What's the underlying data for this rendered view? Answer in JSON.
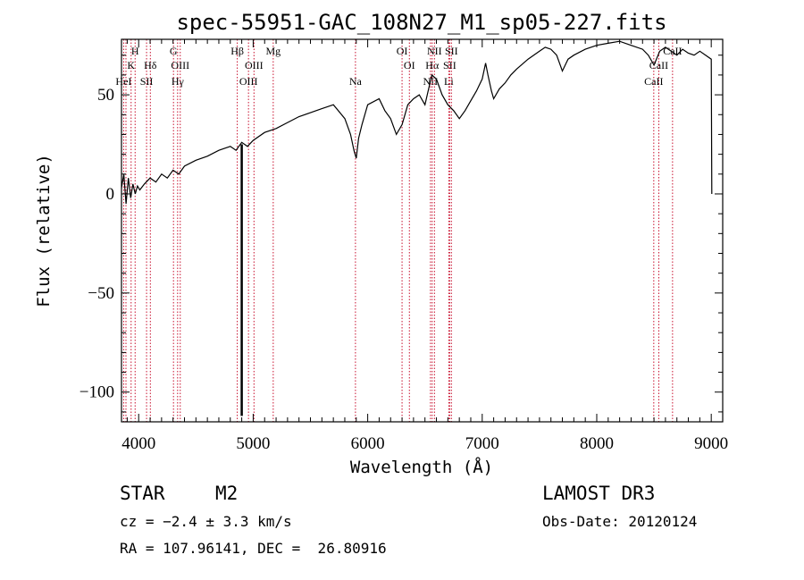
{
  "chart_data": {
    "type": "line",
    "title": "spec-55951-GAC_108N27_M1_sp05-227.fits",
    "xlabel": "Wavelength (Å)",
    "ylabel": "Flux (relative)",
    "xlim": [
      3850,
      9100
    ],
    "ylim": [
      -115,
      78
    ],
    "xticks": [
      4000,
      5000,
      6000,
      7000,
      8000,
      9000
    ],
    "yticks": [
      -100,
      -50,
      0,
      50
    ],
    "spectrum": {
      "x": [
        3850,
        3870,
        3890,
        3910,
        3930,
        3950,
        3970,
        3990,
        4010,
        4050,
        4100,
        4150,
        4200,
        4250,
        4300,
        4350,
        4400,
        4500,
        4600,
        4700,
        4800,
        4850,
        4900,
        4950,
        5000,
        5100,
        5200,
        5300,
        5400,
        5500,
        5600,
        5700,
        5800,
        5850,
        5880,
        5900,
        5920,
        5950,
        6000,
        6100,
        6150,
        6200,
        6250,
        6300,
        6350,
        6400,
        6450,
        6500,
        6560,
        6600,
        6650,
        6700,
        6750,
        6800,
        6850,
        6900,
        6950,
        7000,
        7030,
        7050,
        7080,
        7100,
        7150,
        7200,
        7250,
        7300,
        7400,
        7500,
        7550,
        7600,
        7650,
        7700,
        7750,
        7800,
        7900,
        8000,
        8100,
        8200,
        8300,
        8400,
        8450,
        8500,
        8550,
        8600,
        8650,
        8700,
        8750,
        8800,
        8850,
        8900,
        8950,
        9000,
        9005
      ],
      "y": [
        3,
        10,
        -5,
        8,
        -2,
        5,
        0,
        4,
        2,
        5,
        8,
        6,
        10,
        8,
        12,
        10,
        14,
        17,
        19,
        22,
        24,
        22,
        26,
        24,
        27,
        31,
        33,
        36,
        39,
        41,
        43,
        45,
        38,
        30,
        22,
        18,
        28,
        35,
        45,
        48,
        42,
        38,
        30,
        35,
        45,
        48,
        50,
        45,
        60,
        58,
        50,
        45,
        42,
        38,
        42,
        47,
        52,
        58,
        66,
        60,
        52,
        48,
        53,
        56,
        60,
        63,
        68,
        72,
        74,
        73,
        70,
        62,
        68,
        70,
        73,
        75,
        76,
        77,
        75,
        73,
        70,
        65,
        72,
        74,
        72,
        70,
        73,
        71,
        70,
        72,
        70,
        68,
        0
      ]
    },
    "absorption_line": {
      "x": 4900,
      "y_from": 25,
      "y_to": -112
    },
    "line_markers": [
      {
        "wavelength": 3869,
        "label": "HeI",
        "row": 3
      },
      {
        "wavelength": 3889,
        "label": "",
        "row": 0
      },
      {
        "wavelength": 3934,
        "label": "K",
        "row": 2
      },
      {
        "wavelength": 3969,
        "label": "H",
        "row": 1
      },
      {
        "wavelength": 4069,
        "label": "SII",
        "row": 3
      },
      {
        "wavelength": 4102,
        "label": "Hδ",
        "row": 2
      },
      {
        "wavelength": 4304,
        "label": "G",
        "row": 1
      },
      {
        "wavelength": 4340,
        "label": "Hγ",
        "row": 3
      },
      {
        "wavelength": 4363,
        "label": "OIII",
        "row": 2
      },
      {
        "wavelength": 4861,
        "label": "Hβ",
        "row": 1
      },
      {
        "wavelength": 4959,
        "label": "OIII",
        "row": 3
      },
      {
        "wavelength": 5007,
        "label": "OIII",
        "row": 2
      },
      {
        "wavelength": 5175,
        "label": "Mg",
        "row": 1
      },
      {
        "wavelength": 5893,
        "label": "Na",
        "row": 3
      },
      {
        "wavelength": 6300,
        "label": "OI",
        "row": 1
      },
      {
        "wavelength": 6364,
        "label": "OI",
        "row": 2
      },
      {
        "wavelength": 6548,
        "label": "NII",
        "row": 3
      },
      {
        "wavelength": 6563,
        "label": "Hα",
        "row": 2
      },
      {
        "wavelength": 6583,
        "label": "NII",
        "row": 1
      },
      {
        "wavelength": 6708,
        "label": "Li",
        "row": 3
      },
      {
        "wavelength": 6716,
        "label": "SII",
        "row": 2
      },
      {
        "wavelength": 6731,
        "label": "SII",
        "row": 1
      },
      {
        "wavelength": 8498,
        "label": "CaII",
        "row": 3
      },
      {
        "wavelength": 8542,
        "label": "CaII",
        "row": 2
      },
      {
        "wavelength": 8662,
        "label": "CaII",
        "row": 1
      }
    ]
  },
  "info": {
    "class_label": "STAR",
    "subclass": "M2",
    "survey": "LAMOST DR3",
    "redshift_text": "cz = −2.4 ± 3.3 km/s",
    "obs_date": "Obs-Date: 20120124",
    "coords": "RA = 107.96141, DEC =  26.80916"
  }
}
